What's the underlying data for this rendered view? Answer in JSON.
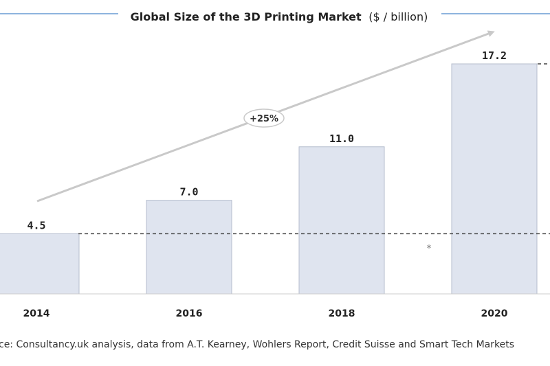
{
  "chart_data": {
    "type": "bar",
    "title": "Global Size of the 3D Printing Market",
    "title_unit": "($ / billion)",
    "categories": [
      "2014",
      "2016",
      "2018",
      "2020"
    ],
    "values": [
      4.5,
      7.0,
      11.0,
      17.2
    ],
    "value_labels": [
      "4.5",
      "7.0",
      "11.0",
      "17.2"
    ],
    "ylim": [
      0,
      18.5
    ],
    "xlabel": "",
    "ylabel": "",
    "grid": false,
    "reference_line_value": 4.5,
    "annotation": "+25%",
    "footnote_mark": "*",
    "source": "ce: Consultancy.uk analysis, data from A.T. Kearney, Wohlers Report, Credit Suisse and Smart Tech Markets",
    "colors": {
      "bar_fill": "#dfe4ef",
      "bar_stroke": "#b4bccd",
      "title_rule": "#8eb4de",
      "arrow": "#c9c9c9",
      "reference_line": "#444444"
    }
  }
}
